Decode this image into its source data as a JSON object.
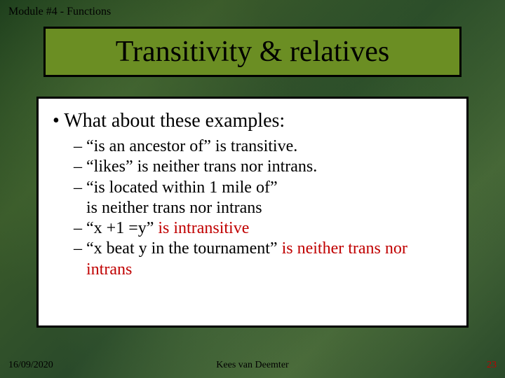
{
  "header": {
    "module_label": "Module #4 - Functions"
  },
  "title": "Transitivity & relatives",
  "content": {
    "main_bullet": "What about these examples:",
    "items": [
      {
        "prefix": "“is an ancestor of” ",
        "trail": "is transitive.",
        "trail_red": false
      },
      {
        "prefix": "“likes” ",
        "trail": "is neither trans nor intrans.",
        "trail_red": false
      },
      {
        "prefix": "“is located within 1 mile of”",
        "trail": "is neither trans nor intrans",
        "break": true,
        "trail_red": false
      },
      {
        "prefix": "“x +1 =y” ",
        "trail": "is intransitive",
        "trail_red": true
      },
      {
        "prefix": "“x beat y in the tournament” ",
        "trail": "is neither trans nor intrans",
        "trail_red": true
      }
    ]
  },
  "footer": {
    "date": "16/09/2020",
    "author": "Kees van Deemter",
    "page": "23"
  },
  "colors": {
    "title_bg": "#6b8e23",
    "border": "#000000",
    "content_bg": "#ffffff",
    "page_red": "#c00000"
  }
}
